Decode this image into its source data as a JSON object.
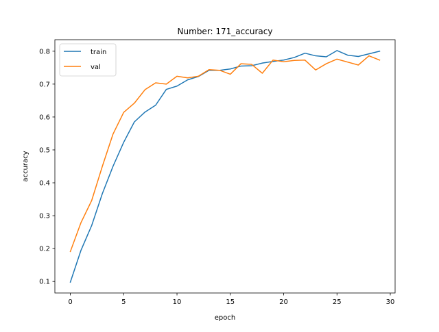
{
  "chart_data": {
    "type": "line",
    "title": "Number: 171_accuracy",
    "xlabel": "epoch",
    "ylabel": "accuracy",
    "xlim": [
      -1.45,
      30.45
    ],
    "ylim": [
      0.065,
      0.835
    ],
    "xticks": [
      0,
      5,
      10,
      15,
      20,
      25,
      30
    ],
    "yticks": [
      0.1,
      0.2,
      0.3,
      0.4,
      0.5,
      0.6,
      0.7,
      0.8
    ],
    "grid": false,
    "legend_position": "top-left",
    "x": [
      0,
      1,
      2,
      3,
      4,
      5,
      6,
      7,
      8,
      9,
      10,
      11,
      12,
      13,
      14,
      15,
      16,
      17,
      18,
      19,
      20,
      21,
      22,
      23,
      24,
      25,
      26,
      27,
      28,
      29
    ],
    "series": [
      {
        "name": "train",
        "color": "#1f77b4",
        "values": [
          0.098,
          0.195,
          0.27,
          0.367,
          0.45,
          0.523,
          0.585,
          0.615,
          0.636,
          0.684,
          0.694,
          0.713,
          0.723,
          0.742,
          0.742,
          0.746,
          0.755,
          0.756,
          0.764,
          0.769,
          0.773,
          0.781,
          0.794,
          0.786,
          0.783,
          0.802,
          0.788,
          0.784,
          0.792,
          0.8
        ]
      },
      {
        "name": "val",
        "color": "#ff7f0e",
        "values": [
          0.191,
          0.279,
          0.346,
          0.45,
          0.548,
          0.614,
          0.642,
          0.683,
          0.704,
          0.7,
          0.724,
          0.719,
          0.724,
          0.744,
          0.742,
          0.73,
          0.762,
          0.76,
          0.733,
          0.773,
          0.768,
          0.772,
          0.773,
          0.743,
          0.762,
          0.776,
          0.767,
          0.758,
          0.786,
          0.773
        ]
      }
    ]
  }
}
